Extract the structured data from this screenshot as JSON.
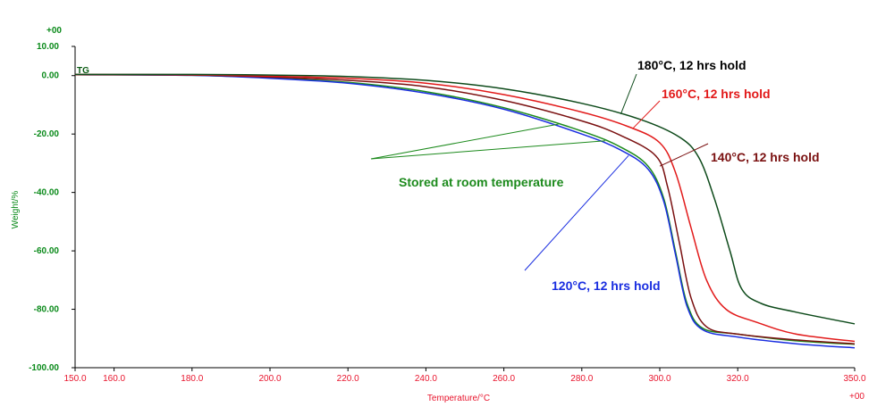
{
  "chart_data": {
    "type": "line",
    "xlabel": "Temperature/°C",
    "ylabel": "Weight/%",
    "xlim": [
      150,
      350
    ],
    "ylim": [
      -100,
      10
    ],
    "x_ticks": [
      "150.0",
      "160.0",
      "180.0",
      "200.0",
      "220.0",
      "240.0",
      "260.0",
      "280.0",
      "300.0",
      "320.0",
      "350.0"
    ],
    "x_tick_values": [
      150,
      160,
      180,
      200,
      220,
      240,
      260,
      280,
      300,
      320,
      350
    ],
    "y_ticks": [
      "10.00",
      "0.00",
      "-20.00",
      "-40.00",
      "-60.00",
      "-80.00",
      "-100.00"
    ],
    "y_tick_values": [
      10,
      0,
      -20,
      -40,
      -60,
      -80,
      -100
    ],
    "x_exponent": "+00",
    "y_exponent": "+00",
    "signal_label": "TG",
    "grid": false,
    "series": [
      {
        "name": "Stored at room temperature",
        "color": "#1c8a1c",
        "points": [
          [
            150,
            0.3
          ],
          [
            180,
            0.1
          ],
          [
            200,
            -0.8
          ],
          [
            220,
            -2.3
          ],
          [
            240,
            -5.5
          ],
          [
            260,
            -11
          ],
          [
            280,
            -19
          ],
          [
            290,
            -24.5
          ],
          [
            297,
            -31
          ],
          [
            301,
            -42
          ],
          [
            304,
            -60
          ],
          [
            307,
            -78
          ],
          [
            311,
            -86.5
          ],
          [
            320,
            -88.5
          ],
          [
            335,
            -90.8
          ],
          [
            350,
            -92
          ]
        ]
      },
      {
        "name": "120°C, 12 hrs hold",
        "color": "#1a2ee0",
        "points": [
          [
            150,
            0.3
          ],
          [
            180,
            0.1
          ],
          [
            200,
            -0.9
          ],
          [
            220,
            -2.6
          ],
          [
            240,
            -6
          ],
          [
            260,
            -11.5
          ],
          [
            280,
            -20
          ],
          [
            290,
            -25.5
          ],
          [
            297,
            -32
          ],
          [
            301,
            -43
          ],
          [
            304,
            -61
          ],
          [
            307,
            -79
          ],
          [
            311,
            -87
          ],
          [
            320,
            -89.5
          ],
          [
            335,
            -91.8
          ],
          [
            350,
            -93.2
          ]
        ]
      },
      {
        "name": "140°C, 12 hrs hold",
        "color": "#7a1010",
        "points": [
          [
            150,
            0.3
          ],
          [
            180,
            0.2
          ],
          [
            200,
            -0.5
          ],
          [
            220,
            -1.6
          ],
          [
            240,
            -3.8
          ],
          [
            260,
            -8.5
          ],
          [
            280,
            -15.5
          ],
          [
            290,
            -20.5
          ],
          [
            299,
            -27.5
          ],
          [
            302,
            -38
          ],
          [
            305,
            -57
          ],
          [
            308,
            -76
          ],
          [
            312,
            -86
          ],
          [
            320,
            -88.5
          ],
          [
            335,
            -90.5
          ],
          [
            350,
            -91.8
          ]
        ]
      },
      {
        "name": "160°C, 12 hrs hold",
        "color": "#e21a1a",
        "points": [
          [
            150,
            0.4
          ],
          [
            180,
            0.3
          ],
          [
            200,
            -0.2
          ],
          [
            220,
            -0.9
          ],
          [
            240,
            -2.6
          ],
          [
            260,
            -6.5
          ],
          [
            280,
            -12.5
          ],
          [
            292,
            -17.5
          ],
          [
            300,
            -23
          ],
          [
            304,
            -33
          ],
          [
            308,
            -52
          ],
          [
            312,
            -70
          ],
          [
            317,
            -80
          ],
          [
            325,
            -84.5
          ],
          [
            335,
            -88.5
          ],
          [
            350,
            -91
          ]
        ]
      },
      {
        "name": "180°C, 12 hrs hold",
        "color": "#0d4a1a",
        "points": [
          [
            150,
            0.4
          ],
          [
            180,
            0.4
          ],
          [
            200,
            0.2
          ],
          [
            220,
            -0.3
          ],
          [
            240,
            -1.6
          ],
          [
            260,
            -4.5
          ],
          [
            280,
            -9.5
          ],
          [
            295,
            -15
          ],
          [
            305,
            -21
          ],
          [
            310,
            -28
          ],
          [
            314,
            -42
          ],
          [
            318,
            -60
          ],
          [
            321,
            -73
          ],
          [
            326,
            -78
          ],
          [
            335,
            -81
          ],
          [
            350,
            -85
          ]
        ]
      }
    ],
    "annotations": [
      {
        "text": "180°C, 12 hrs hold",
        "color": "#000000",
        "series": 4
      },
      {
        "text": "160°C, 12 hrs hold",
        "color": "#e21a1a",
        "series": 3
      },
      {
        "text": "140°C, 12 hrs hold",
        "color": "#7a1010",
        "series": 2
      },
      {
        "text": "Stored at room temperature",
        "color": "#1c8a1c",
        "series": 0
      },
      {
        "text": "120°C, 12 hrs hold",
        "color": "#1a2ee0",
        "series": 1
      }
    ]
  }
}
